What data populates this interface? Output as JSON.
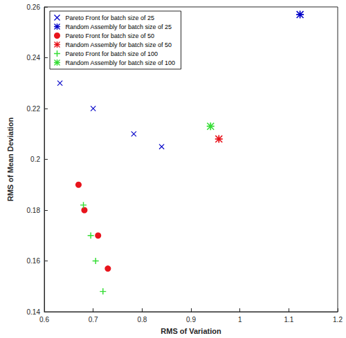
{
  "chart_data": {
    "type": "scatter",
    "x_label": "RMS of Variation",
    "y_label": "RMS of Mean Deviation",
    "xlim": [
      0.6,
      1.2
    ],
    "xticks": [
      0.6,
      0.7,
      0.8,
      0.9,
      1,
      1.1,
      1.2
    ],
    "ylim": [
      0.14,
      0.26
    ],
    "yticks": [
      0.14,
      0.16,
      0.18,
      0.2,
      0.22,
      0.24,
      0.26
    ],
    "grid": false,
    "legend": "upper left",
    "series": [
      {
        "name": "Pareto Front for batch size of 25",
        "color": "#0000c8",
        "marker": "x",
        "x": [
          0.632,
          0.7,
          0.783,
          0.84
        ],
        "values": [
          0.23,
          0.22,
          0.21,
          0.205
        ]
      },
      {
        "name": "Random Assembly for batch size of 25",
        "color": "#0000c8",
        "marker": "asterisk",
        "x": [
          1.123
        ],
        "values": [
          0.257
        ]
      },
      {
        "name": "Pareto Front for batch size of 50",
        "color": "#e8141c",
        "marker": "circle",
        "x": [
          0.67,
          0.682,
          0.71,
          0.73
        ],
        "values": [
          0.19,
          0.18,
          0.17,
          0.157
        ]
      },
      {
        "name": "Random Assembly for batch size of 50",
        "color": "#e8141c",
        "marker": "asterisk",
        "x": [
          0.957
        ],
        "values": [
          0.208
        ]
      },
      {
        "name": "Pareto Front for batch size of 100",
        "color": "#33dd33",
        "marker": "plus",
        "x": [
          0.68,
          0.695,
          0.705,
          0.72
        ],
        "values": [
          0.182,
          0.17,
          0.16,
          0.148
        ]
      },
      {
        "name": "Random Assembly for batch size of 100",
        "color": "#33dd33",
        "marker": "asterisk",
        "x": [
          0.94
        ],
        "values": [
          0.213
        ]
      }
    ]
  }
}
